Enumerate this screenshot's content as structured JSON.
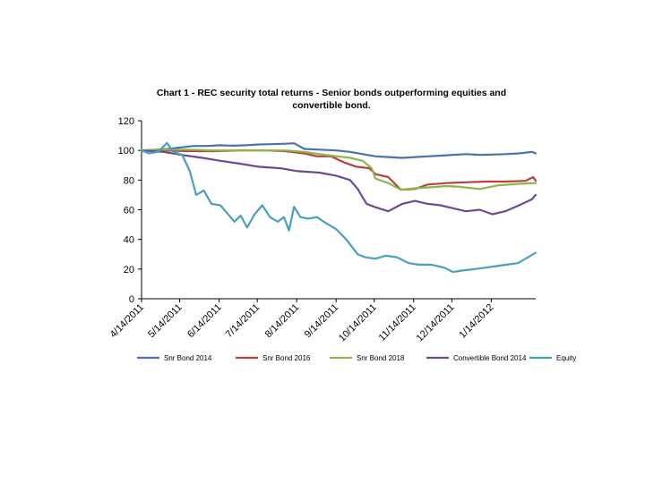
{
  "chart_data": {
    "type": "line",
    "title_line1": "Chart 1 - REC security total returns - Senior bonds outperforming equities and",
    "title_line2": "convertible bond.",
    "xlabel": "",
    "ylabel": "",
    "ylim": [
      0,
      120
    ],
    "yticks": [
      0,
      20,
      40,
      60,
      80,
      100,
      120
    ],
    "xlim": [
      "2011-04-14",
      "2012-02-18"
    ],
    "xticks": [
      "4/14/2011",
      "5/14/2011",
      "6/14/2011",
      "7/14/2011",
      "8/14/2011",
      "9/14/2011",
      "10/14/2011",
      "11/14/2011",
      "12/14/2011",
      "1/14/2012"
    ],
    "xtick_dates": [
      "2011-04-14",
      "2011-05-14",
      "2011-06-14",
      "2011-07-14",
      "2011-08-14",
      "2011-09-14",
      "2011-10-14",
      "2011-11-14",
      "2011-12-14",
      "2012-01-14"
    ],
    "grid": false,
    "legend_position": "bottom",
    "series": [
      {
        "name": "Snr Bond 2014",
        "color": "#4a72b0",
        "x": [
          "2011-04-14",
          "2011-04-25",
          "2011-05-05",
          "2011-05-15",
          "2011-05-25",
          "2011-06-05",
          "2011-06-15",
          "2011-06-25",
          "2011-07-05",
          "2011-07-15",
          "2011-07-25",
          "2011-08-05",
          "2011-08-12",
          "2011-08-20",
          "2011-09-01",
          "2011-09-14",
          "2011-09-25",
          "2011-10-05",
          "2011-10-15",
          "2011-10-25",
          "2011-11-05",
          "2011-11-15",
          "2011-11-25",
          "2011-12-05",
          "2011-12-15",
          "2011-12-25",
          "2012-01-05",
          "2012-01-15",
          "2012-01-25",
          "2012-02-05",
          "2012-02-15",
          "2012-02-18"
        ],
        "y": [
          100,
          100.5,
          101,
          102,
          103,
          103,
          103.5,
          103.2,
          103.5,
          104,
          104.2,
          104.5,
          104.8,
          101,
          100.5,
          100,
          99,
          97.5,
          96,
          95.5,
          95,
          95.5,
          96,
          96.5,
          97,
          97.5,
          97,
          97.2,
          97.5,
          98,
          99,
          98
        ]
      },
      {
        "name": "Snr Bond 2016",
        "color": "#b6423e",
        "x": [
          "2011-04-14",
          "2011-05-01",
          "2011-05-20",
          "2011-06-10",
          "2011-07-01",
          "2011-07-20",
          "2011-08-05",
          "2011-08-20",
          "2011-08-30",
          "2011-09-10",
          "2011-09-20",
          "2011-09-30",
          "2011-10-10",
          "2011-10-15",
          "2011-10-25",
          "2011-11-04",
          "2011-11-15",
          "2011-11-25",
          "2011-12-10",
          "2011-12-25",
          "2012-01-10",
          "2012-01-25",
          "2012-02-10",
          "2012-02-16",
          "2012-02-18"
        ],
        "y": [
          100,
          100,
          99.5,
          99.5,
          100,
          100,
          99.5,
          98,
          96,
          96,
          92,
          89,
          88,
          84,
          82,
          73.5,
          74,
          77,
          78,
          78.5,
          79,
          79,
          79.5,
          82,
          79.5
        ]
      },
      {
        "name": "Snr Bond 2018",
        "color": "#8db54a",
        "x": [
          "2011-04-14",
          "2011-05-01",
          "2011-05-20",
          "2011-06-10",
          "2011-07-01",
          "2011-07-20",
          "2011-08-05",
          "2011-08-20",
          "2011-09-05",
          "2011-09-15",
          "2011-09-25",
          "2011-10-05",
          "2011-10-12",
          "2011-10-15",
          "2011-10-25",
          "2011-11-04",
          "2011-11-15",
          "2011-11-25",
          "2011-12-10",
          "2011-12-20",
          "2012-01-05",
          "2012-01-20",
          "2012-02-05",
          "2012-02-18"
        ],
        "y": [
          100,
          100.5,
          100.5,
          100,
          100,
          100,
          100,
          99,
          97,
          96,
          95,
          93,
          88,
          81,
          78,
          73.5,
          74.5,
          75,
          76,
          75.5,
          74,
          76.5,
          77.5,
          78
        ]
      },
      {
        "name": "Convertible Bond 2014",
        "color": "#6e4a91",
        "x": [
          "2011-04-14",
          "2011-05-01",
          "2011-05-15",
          "2011-06-01",
          "2011-06-15",
          "2011-07-01",
          "2011-07-15",
          "2011-08-01",
          "2011-08-15",
          "2011-09-01",
          "2011-09-14",
          "2011-09-25",
          "2011-10-01",
          "2011-10-08",
          "2011-10-14",
          "2011-10-25",
          "2011-11-05",
          "2011-11-15",
          "2011-11-25",
          "2011-12-05",
          "2011-12-15",
          "2011-12-25",
          "2012-01-05",
          "2012-01-15",
          "2012-01-25",
          "2012-02-05",
          "2012-02-15",
          "2012-02-18"
        ],
        "y": [
          100,
          99,
          97,
          95,
          93,
          91,
          89,
          88,
          86,
          85,
          83,
          80,
          74,
          64,
          62,
          59,
          64,
          66,
          64,
          63,
          61,
          59,
          60,
          57,
          59,
          63,
          67,
          70
        ]
      },
      {
        "name": "Equity",
        "color": "#4aa0ba",
        "x": [
          "2011-04-14",
          "2011-04-20",
          "2011-04-27",
          "2011-05-04",
          "2011-05-09",
          "2011-05-16",
          "2011-05-22",
          "2011-05-27",
          "2011-06-02",
          "2011-06-08",
          "2011-06-15",
          "2011-06-20",
          "2011-06-26",
          "2011-07-01",
          "2011-07-06",
          "2011-07-12",
          "2011-07-18",
          "2011-07-24",
          "2011-07-30",
          "2011-08-04",
          "2011-08-08",
          "2011-08-12",
          "2011-08-17",
          "2011-08-23",
          "2011-08-30",
          "2011-09-06",
          "2011-09-14",
          "2011-09-22",
          "2011-10-01",
          "2011-10-07",
          "2011-10-15",
          "2011-10-23",
          "2011-11-01",
          "2011-11-10",
          "2011-11-18",
          "2011-11-28",
          "2011-12-08",
          "2011-12-15",
          "2011-12-22",
          "2012-01-01",
          "2012-01-10",
          "2012-01-18",
          "2012-01-26",
          "2012-02-04",
          "2012-02-12",
          "2012-02-18"
        ],
        "y": [
          100,
          98,
          99,
          105,
          99,
          97,
          86,
          70,
          73,
          64,
          63,
          58,
          52,
          56,
          48,
          57,
          63,
          55,
          52,
          55,
          46,
          62,
          55,
          54,
          55,
          51,
          47,
          40,
          30,
          28,
          27,
          29,
          28,
          24,
          23,
          23,
          21,
          18,
          19,
          20,
          21,
          22,
          23,
          24,
          28,
          31
        ]
      }
    ]
  }
}
